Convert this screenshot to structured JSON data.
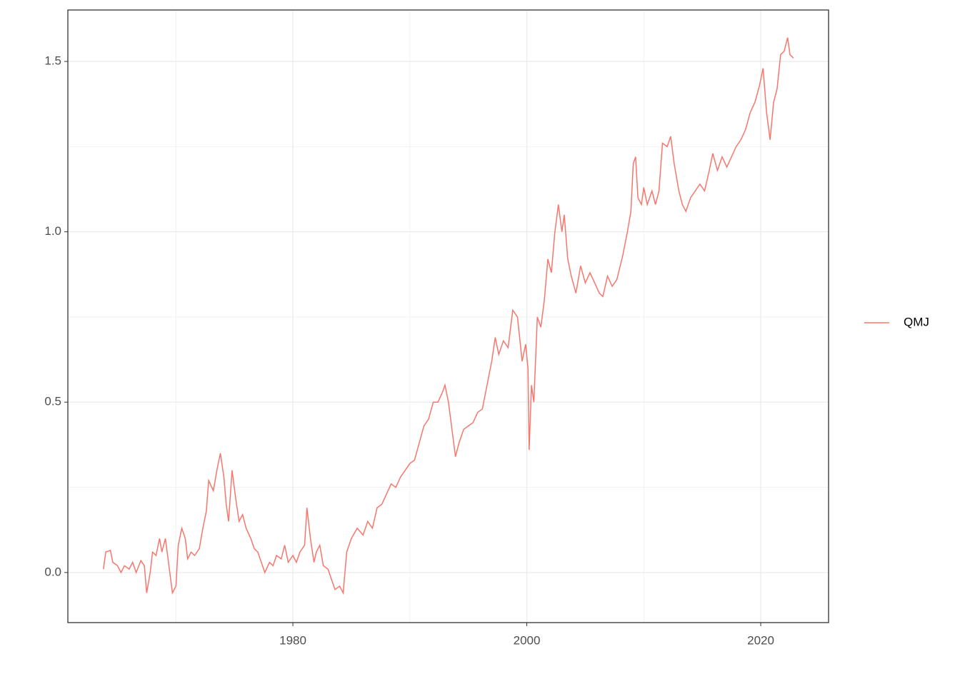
{
  "chart_data": {
    "type": "line",
    "x": [
      1963.8,
      1964.0,
      1964.4,
      1964.6,
      1965.0,
      1965.3,
      1965.6,
      1966.0,
      1966.3,
      1966.6,
      1967.0,
      1967.3,
      1967.5,
      1967.8,
      1968.0,
      1968.3,
      1968.6,
      1968.8,
      1969.1,
      1969.4,
      1969.7,
      1970.0,
      1970.2,
      1970.5,
      1970.8,
      1971.0,
      1971.3,
      1971.6,
      1972.0,
      1972.3,
      1972.6,
      1972.8,
      1973.2,
      1973.5,
      1973.8,
      1974.1,
      1974.3,
      1974.5,
      1974.8,
      1975.1,
      1975.4,
      1975.7,
      1976.0,
      1976.4,
      1976.7,
      1977.0,
      1977.3,
      1977.6,
      1978.0,
      1978.3,
      1978.6,
      1979.0,
      1979.3,
      1979.6,
      1980.0,
      1980.3,
      1980.6,
      1981.0,
      1981.2,
      1981.5,
      1981.8,
      1982.0,
      1982.3,
      1982.6,
      1983.0,
      1983.3,
      1983.6,
      1984.0,
      1984.3,
      1984.6,
      1985.0,
      1985.5,
      1986.0,
      1986.4,
      1986.8,
      1987.2,
      1987.6,
      1988.0,
      1988.4,
      1988.8,
      1989.2,
      1989.6,
      1990.0,
      1990.4,
      1990.8,
      1991.2,
      1991.6,
      1992.0,
      1992.4,
      1992.8,
      1993.0,
      1993.3,
      1993.6,
      1993.9,
      1994.2,
      1994.6,
      1995.0,
      1995.4,
      1995.8,
      1996.2,
      1996.6,
      1997.0,
      1997.3,
      1997.6,
      1998.0,
      1998.4,
      1998.8,
      1999.2,
      1999.6,
      1999.9,
      2000.1,
      2000.2,
      2000.4,
      2000.6,
      2000.9,
      2001.2,
      2001.5,
      2001.8,
      2002.1,
      2002.4,
      2002.7,
      2003.0,
      2003.2,
      2003.5,
      2003.8,
      2004.2,
      2004.6,
      2005.0,
      2005.4,
      2005.8,
      2006.2,
      2006.5,
      2006.9,
      2007.3,
      2007.7,
      2008.2,
      2008.6,
      2008.9,
      2009.1,
      2009.3,
      2009.5,
      2009.8,
      2010.0,
      2010.3,
      2010.7,
      2011.0,
      2011.3,
      2011.6,
      2012.0,
      2012.3,
      2012.6,
      2013.0,
      2013.3,
      2013.6,
      2014.0,
      2014.4,
      2014.8,
      2015.2,
      2015.6,
      2015.9,
      2016.3,
      2016.7,
      2017.1,
      2017.5,
      2017.9,
      2018.3,
      2018.7,
      2019.1,
      2019.5,
      2019.9,
      2020.2,
      2020.5,
      2020.8,
      2021.1,
      2021.4,
      2021.7,
      2022.0,
      2022.3,
      2022.5,
      2022.8
    ],
    "series": [
      {
        "name": "QMJ",
        "color": "#F8766D",
        "values": [
          0.01,
          0.06,
          0.065,
          0.03,
          0.02,
          0.0,
          0.02,
          0.01,
          0.03,
          0.0,
          0.035,
          0.02,
          -0.06,
          0.0,
          0.06,
          0.05,
          0.1,
          0.06,
          0.1,
          0.02,
          -0.06,
          -0.04,
          0.08,
          0.13,
          0.1,
          0.04,
          0.06,
          0.05,
          0.07,
          0.13,
          0.18,
          0.27,
          0.24,
          0.3,
          0.35,
          0.28,
          0.2,
          0.15,
          0.3,
          0.22,
          0.15,
          0.17,
          0.13,
          0.1,
          0.07,
          0.06,
          0.03,
          0.0,
          0.03,
          0.02,
          0.05,
          0.04,
          0.08,
          0.03,
          0.05,
          0.03,
          0.06,
          0.08,
          0.19,
          0.1,
          0.03,
          0.06,
          0.08,
          0.02,
          0.01,
          -0.02,
          -0.05,
          -0.04,
          -0.06,
          0.06,
          0.1,
          0.13,
          0.11,
          0.15,
          0.13,
          0.19,
          0.2,
          0.23,
          0.26,
          0.25,
          0.28,
          0.3,
          0.32,
          0.33,
          0.38,
          0.43,
          0.45,
          0.5,
          0.5,
          0.53,
          0.55,
          0.5,
          0.42,
          0.34,
          0.38,
          0.42,
          0.43,
          0.44,
          0.47,
          0.48,
          0.55,
          0.62,
          0.69,
          0.64,
          0.68,
          0.66,
          0.77,
          0.75,
          0.62,
          0.67,
          0.6,
          0.36,
          0.55,
          0.5,
          0.75,
          0.72,
          0.8,
          0.92,
          0.88,
          1.0,
          1.08,
          1.0,
          1.05,
          0.92,
          0.87,
          0.82,
          0.9,
          0.85,
          0.88,
          0.85,
          0.82,
          0.81,
          0.87,
          0.84,
          0.86,
          0.93,
          1.0,
          1.06,
          1.2,
          1.22,
          1.1,
          1.08,
          1.13,
          1.08,
          1.12,
          1.08,
          1.12,
          1.26,
          1.25,
          1.28,
          1.2,
          1.12,
          1.08,
          1.06,
          1.1,
          1.12,
          1.14,
          1.12,
          1.18,
          1.23,
          1.18,
          1.22,
          1.19,
          1.22,
          1.25,
          1.27,
          1.3,
          1.35,
          1.38,
          1.43,
          1.48,
          1.35,
          1.27,
          1.38,
          1.42,
          1.52,
          1.53,
          1.57,
          1.52,
          1.51
        ]
      }
    ],
    "xlim": [
      1960.76,
      2025.8
    ],
    "xticks": [
      1980,
      2000,
      2020
    ],
    "x_minor_grid": [
      1970,
      1990,
      2010
    ],
    "ylim": [
      -0.147,
      1.651
    ],
    "yticks": [
      {
        "value": 0,
        "label": "0.0"
      },
      0.5,
      {
        "value": 1,
        "label": "1.0"
      },
      1.5
    ],
    "y_minor_grid": [
      0.25,
      0.75,
      1.25
    ],
    "grid": true,
    "legend": "right"
  }
}
